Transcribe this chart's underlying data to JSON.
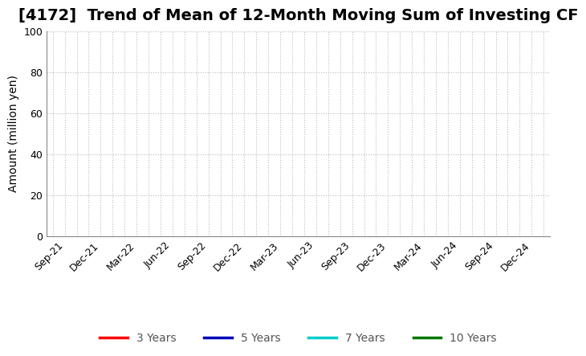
{
  "title": "[4172]  Trend of Mean of 12-Month Moving Sum of Investing CF",
  "ylabel": "Amount (million yen)",
  "ylim": [
    0,
    100
  ],
  "yticks": [
    0,
    20,
    40,
    60,
    80,
    100
  ],
  "x_labels": [
    "Sep-21",
    "Dec-21",
    "Mar-22",
    "Jun-22",
    "Sep-22",
    "Dec-22",
    "Mar-23",
    "Jun-23",
    "Sep-23",
    "Dec-23",
    "Mar-24",
    "Jun-24",
    "Sep-24",
    "Dec-24"
  ],
  "legend_entries": [
    {
      "label": "3 Years",
      "color": "#ff0000"
    },
    {
      "label": "5 Years",
      "color": "#0000bb"
    },
    {
      "label": "7 Years",
      "color": "#00cccc"
    },
    {
      "label": "10 Years",
      "color": "#007700"
    }
  ],
  "background_color": "#ffffff",
  "grid_color": "#bbbbbb",
  "title_fontsize": 14,
  "axis_label_fontsize": 10,
  "tick_fontsize": 9,
  "legend_fontsize": 10
}
